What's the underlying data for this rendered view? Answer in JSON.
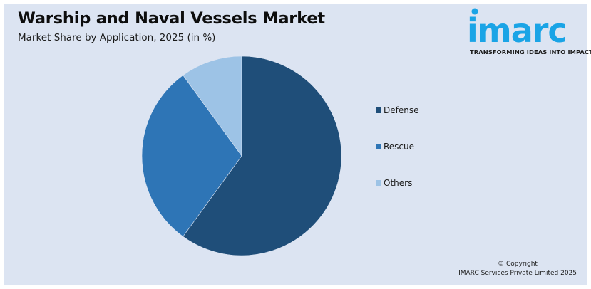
{
  "header": {
    "title": "Warship and Naval Vessels Market",
    "subtitle": "Market Share by Application, 2025 (in %)"
  },
  "logo": {
    "wordmark": "imarc",
    "tagline": "TRANSFORMING IDEAS INTO IMPACT",
    "color": "#1aa4e6"
  },
  "footer": {
    "copyright": "© Copyright",
    "company": "IMARC Services Private Limited 2025"
  },
  "legend": {
    "items": [
      {
        "label": "Defense",
        "color": "#1f4e79"
      },
      {
        "label": "Rescue",
        "color": "#2e75b6"
      },
      {
        "label": "Others",
        "color": "#9dc3e6"
      }
    ]
  },
  "chart_data": {
    "type": "pie",
    "title": "Warship and Naval Vessels Market",
    "subtitle": "Market Share by Application, 2025 (in %)",
    "categories": [
      "Defense",
      "Rescue",
      "Others"
    ],
    "values": [
      60,
      30,
      10
    ],
    "colors": [
      "#1f4e79",
      "#2e75b6",
      "#9dc3e6"
    ],
    "start_angle_deg": 0,
    "direction": "clockwise",
    "legend_position": "right",
    "data_labels": false
  }
}
